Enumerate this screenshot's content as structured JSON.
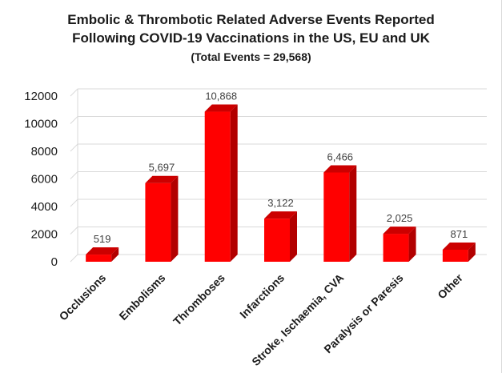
{
  "chart_data": {
    "type": "bar",
    "title_lines": [
      "Embolic & Thrombotic Related Adverse Events Reported",
      "Following COVID-19 Vaccinations in the US, EU and UK"
    ],
    "subtitle": "(Total Events = 29,568)",
    "categories": [
      "Occlusions",
      "Embolisms",
      "Thromboses",
      "Infarctions",
      "Stroke, Ischaemia, CVA",
      "Paralysis or Paresis",
      "Other"
    ],
    "values": [
      519,
      5697,
      10868,
      3122,
      6466,
      2025,
      871
    ],
    "value_labels": [
      "519",
      "5,697",
      "10,868",
      "3,122",
      "6,466",
      "2,025",
      "871"
    ],
    "y_ticks": [
      "0",
      "2000",
      "4000",
      "6000",
      "8000",
      "10000",
      "12000"
    ],
    "ylim": [
      0,
      12000
    ],
    "grid": true,
    "legend": "none",
    "bar_color": "#ff0000",
    "bar_side_color": "#b20000",
    "bar_top_color": "#cc0000",
    "grid_color": "#d9d9d9",
    "axis_text_color": "#1a1a1a",
    "label_color": "#404040"
  }
}
